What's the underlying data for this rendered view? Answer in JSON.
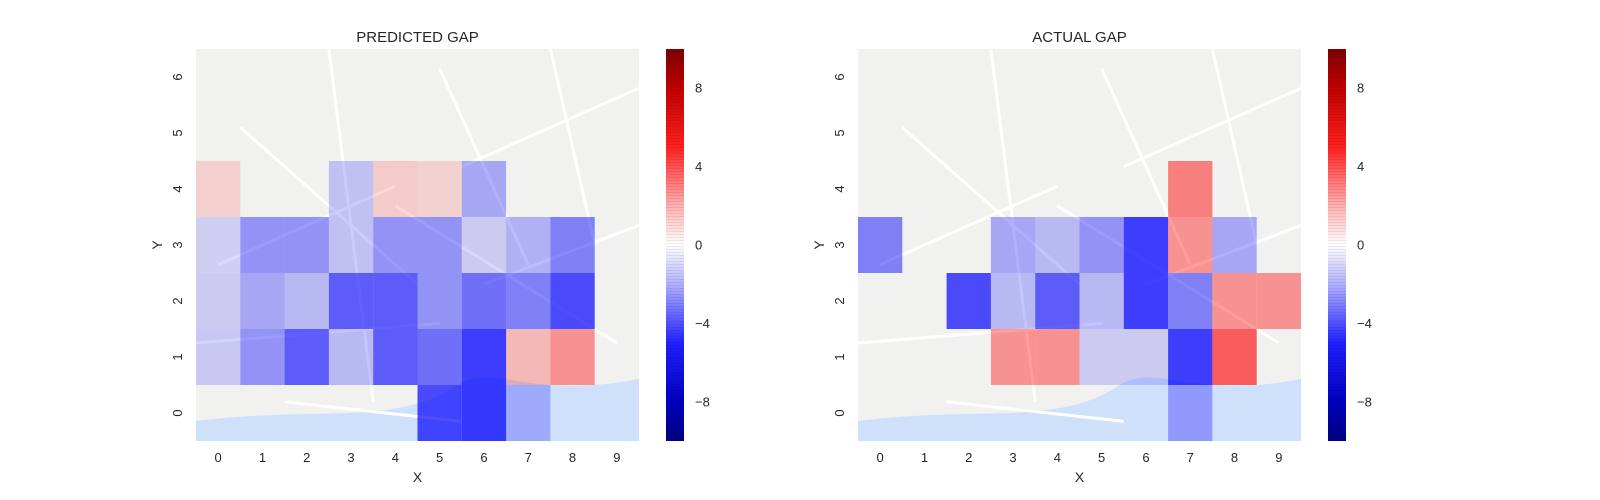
{
  "chart_data": [
    {
      "type": "heatmap",
      "title": "PREDICTED GAP",
      "xlabel": "X",
      "ylabel": "Y",
      "x_ticks": [
        "0",
        "1",
        "2",
        "3",
        "4",
        "5",
        "6",
        "7",
        "8",
        "9"
      ],
      "y_ticks": [
        "0",
        "1",
        "2",
        "3",
        "4",
        "5",
        "6"
      ],
      "background": "street map",
      "colormap": "seismic (blue-white-red)",
      "colorbar": {
        "range": [
          -10,
          10
        ],
        "ticks": [
          "8",
          "4",
          "0",
          "−4",
          "−8"
        ],
        "tick_values": [
          8,
          4,
          0,
          -4,
          -8
        ]
      },
      "cells": [
        {
          "x": 0,
          "y": 1,
          "value": -0.6
        },
        {
          "x": 0,
          "y": 2,
          "value": -0.5
        },
        {
          "x": 0,
          "y": 3,
          "value": -0.4
        },
        {
          "x": 0,
          "y": 4,
          "value": 0.4
        },
        {
          "x": 1,
          "y": 1,
          "value": -2.0
        },
        {
          "x": 1,
          "y": 2,
          "value": -1.5
        },
        {
          "x": 1,
          "y": 3,
          "value": -2.0
        },
        {
          "x": 2,
          "y": 1,
          "value": -3.5
        },
        {
          "x": 2,
          "y": 2,
          "value": -1.0
        },
        {
          "x": 2,
          "y": 3,
          "value": -2.0
        },
        {
          "x": 3,
          "y": 1,
          "value": -1.0
        },
        {
          "x": 3,
          "y": 2,
          "value": -3.5
        },
        {
          "x": 3,
          "y": 3,
          "value": -0.8
        },
        {
          "x": 3,
          "y": 4,
          "value": -0.8
        },
        {
          "x": 4,
          "y": 1,
          "value": -3.5
        },
        {
          "x": 4,
          "y": 2,
          "value": -3.5
        },
        {
          "x": 4,
          "y": 3,
          "value": -2.0
        },
        {
          "x": 4,
          "y": 4,
          "value": 0.5
        },
        {
          "x": 5,
          "y": 0,
          "value": -4.0
        },
        {
          "x": 5,
          "y": 1,
          "value": -3.0
        },
        {
          "x": 5,
          "y": 2,
          "value": -2.0
        },
        {
          "x": 5,
          "y": 3,
          "value": -2.0
        },
        {
          "x": 5,
          "y": 4,
          "value": 0.3
        },
        {
          "x": 6,
          "y": 0,
          "value": -6.0
        },
        {
          "x": 6,
          "y": 1,
          "value": -4.5
        },
        {
          "x": 6,
          "y": 2,
          "value": -3.0
        },
        {
          "x": 6,
          "y": 3,
          "value": -0.5
        },
        {
          "x": 6,
          "y": 4,
          "value": -1.5
        },
        {
          "x": 7,
          "y": 0,
          "value": -1.0
        },
        {
          "x": 7,
          "y": 1,
          "value": 1.0
        },
        {
          "x": 7,
          "y": 2,
          "value": -2.5
        },
        {
          "x": 7,
          "y": 3,
          "value": -1.2
        },
        {
          "x": 8,
          "y": 1,
          "value": 2.0
        },
        {
          "x": 8,
          "y": 2,
          "value": -4.0
        },
        {
          "x": 8,
          "y": 3,
          "value": -2.5
        }
      ]
    },
    {
      "type": "heatmap",
      "title": "ACTUAL GAP",
      "xlabel": "X",
      "ylabel": "Y",
      "x_ticks": [
        "0",
        "1",
        "2",
        "3",
        "4",
        "5",
        "6",
        "7",
        "8",
        "9"
      ],
      "y_ticks": [
        "0",
        "1",
        "2",
        "3",
        "4",
        "5",
        "6"
      ],
      "background": "street map",
      "colormap": "seismic (blue-white-red)",
      "colorbar": {
        "range": [
          -10,
          10
        ],
        "ticks": [
          "8",
          "4",
          "0",
          "−4",
          "−8"
        ],
        "tick_values": [
          8,
          4,
          0,
          -4,
          -8
        ]
      },
      "cells": [
        {
          "x": 0,
          "y": 3,
          "value": -2.5
        },
        {
          "x": 2,
          "y": 2,
          "value": -4.0
        },
        {
          "x": 3,
          "y": 1,
          "value": 2.0
        },
        {
          "x": 3,
          "y": 2,
          "value": -1.0
        },
        {
          "x": 3,
          "y": 3,
          "value": -1.5
        },
        {
          "x": 4,
          "y": 1,
          "value": 2.0
        },
        {
          "x": 4,
          "y": 2,
          "value": -3.5
        },
        {
          "x": 4,
          "y": 3,
          "value": -1.0
        },
        {
          "x": 5,
          "y": 1,
          "value": -0.5
        },
        {
          "x": 5,
          "y": 2,
          "value": -1.0
        },
        {
          "x": 5,
          "y": 3,
          "value": -2.0
        },
        {
          "x": 6,
          "y": 1,
          "value": -0.5
        },
        {
          "x": 6,
          "y": 2,
          "value": -6.5
        },
        {
          "x": 6,
          "y": 3,
          "value": -5.0
        },
        {
          "x": 7,
          "y": 0,
          "value": -1.5
        },
        {
          "x": 7,
          "y": 1,
          "value": -6.0
        },
        {
          "x": 7,
          "y": 2,
          "value": -2.5
        },
        {
          "x": 7,
          "y": 3,
          "value": 2.0
        },
        {
          "x": 7,
          "y": 4,
          "value": 2.5
        },
        {
          "x": 8,
          "y": 1,
          "value": 3.5
        },
        {
          "x": 8,
          "y": 2,
          "value": 2.0
        },
        {
          "x": 8,
          "y": 3,
          "value": -1.5
        },
        {
          "x": 9,
          "y": 2,
          "value": 2.0
        }
      ]
    }
  ]
}
